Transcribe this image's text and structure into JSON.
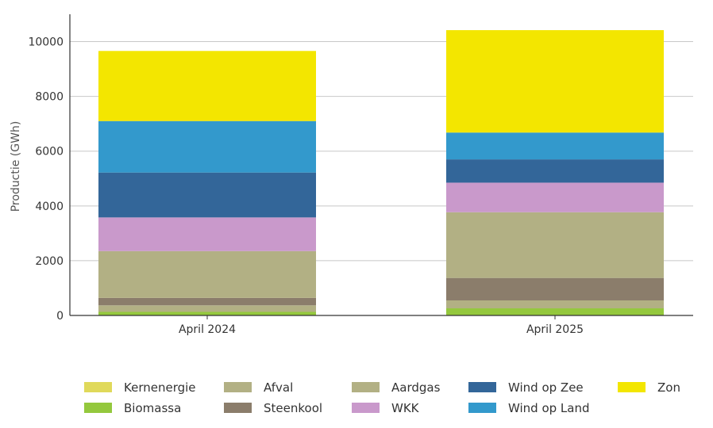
{
  "chart_data": {
    "type": "bar",
    "stacked": true,
    "categories": [
      "April 2024",
      "April 2025"
    ],
    "ylabel": "Productie (GWh)",
    "ylim": [
      0,
      11000
    ],
    "yticks": [
      0,
      2000,
      4000,
      6000,
      8000,
      10000
    ],
    "grid": true,
    "legend_position": "bottom",
    "series": [
      {
        "name": "Kernenergie",
        "color": "#e0d95a",
        "values": [
          0,
          0
        ]
      },
      {
        "name": "Biomassa",
        "color": "#94c83d",
        "values": [
          130,
          260
        ]
      },
      {
        "name": "Afval",
        "color": "#b2b084",
        "values": [
          240,
          290
        ]
      },
      {
        "name": "Steenkool",
        "color": "#8b7d6b",
        "values": [
          270,
          820
        ]
      },
      {
        "name": "Aardgas",
        "color": "#b2b084",
        "values": [
          1710,
          2400
        ]
      },
      {
        "name": "WKK",
        "color": "#c999cb",
        "values": [
          1230,
          1080
        ]
      },
      {
        "name": "Wind op Zee",
        "color": "#336699",
        "values": [
          1640,
          850
        ]
      },
      {
        "name": "Wind op Land",
        "color": "#3399cc",
        "values": [
          1880,
          980
        ]
      },
      {
        "name": "Zon",
        "color": "#f3e600",
        "values": [
          2560,
          3740
        ]
      }
    ]
  }
}
